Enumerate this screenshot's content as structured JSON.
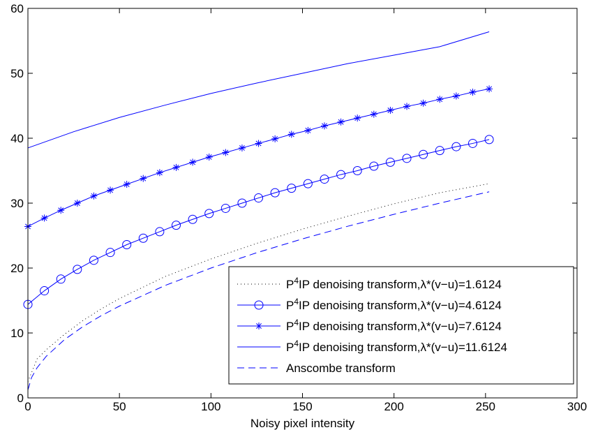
{
  "chart_data": {
    "type": "line",
    "xlabel": "Noisy pixel intensity",
    "ylabel": "",
    "title": "",
    "xlim": [
      0,
      300
    ],
    "ylim": [
      0,
      60
    ],
    "xticks": [
      0,
      50,
      100,
      150,
      200,
      250,
      300
    ],
    "yticks": [
      0,
      10,
      20,
      30,
      40,
      50,
      60
    ],
    "grid": false,
    "legend_position": "bottom-right",
    "line_color": "#0000ff",
    "series": [
      {
        "legend_prefix": "P",
        "legend_sup": "4",
        "legend_suffix": "IP denoising transform,λ*(v−u)=1.6124",
        "style": "dotted",
        "marker": "none",
        "color": "#000000",
        "x": [
          0,
          5,
          10,
          20,
          30,
          40,
          50,
          75,
          100,
          125,
          150,
          175,
          200,
          225,
          252
        ],
        "y": [
          2.5,
          6.0,
          7.4,
          9.8,
          11.9,
          13.7,
          15.3,
          18.7,
          21.4,
          23.8,
          26.0,
          28.0,
          29.9,
          31.6,
          33.0
        ]
      },
      {
        "legend_prefix": "P",
        "legend_sup": "4",
        "legend_suffix": "IP denoising transform,λ*(v−u)=4.6124",
        "style": "solid",
        "marker": "circle",
        "color": "#0000ff",
        "x": [
          0,
          9,
          18,
          27,
          36,
          45,
          54,
          63,
          72,
          81,
          90,
          99,
          108,
          117,
          126,
          135,
          144,
          153,
          162,
          171,
          180,
          189,
          198,
          207,
          216,
          225,
          234,
          243,
          252
        ],
        "y": [
          14.4,
          16.5,
          18.3,
          19.8,
          21.2,
          22.4,
          23.6,
          24.6,
          25.6,
          26.6,
          27.5,
          28.4,
          29.2,
          30.0,
          30.8,
          31.6,
          32.3,
          33.0,
          33.7,
          34.4,
          35.0,
          35.7,
          36.3,
          36.9,
          37.5,
          38.1,
          38.7,
          39.2,
          39.8
        ]
      },
      {
        "legend_prefix": "P",
        "legend_sup": "4",
        "legend_suffix": "IP denoising transform,λ*(v−u)=7.6124",
        "style": "solid",
        "marker": "asterisk",
        "color": "#0000ff",
        "x": [
          0,
          9,
          18,
          27,
          36,
          45,
          54,
          63,
          72,
          81,
          90,
          99,
          108,
          117,
          126,
          135,
          144,
          153,
          162,
          171,
          180,
          189,
          198,
          207,
          216,
          225,
          234,
          243,
          252
        ],
        "y": [
          26.4,
          27.7,
          28.9,
          30.0,
          31.1,
          32.0,
          32.9,
          33.8,
          34.7,
          35.5,
          36.3,
          37.1,
          37.8,
          38.5,
          39.2,
          39.9,
          40.6,
          41.2,
          41.9,
          42.5,
          43.1,
          43.7,
          44.3,
          44.9,
          45.4,
          46.0,
          46.5,
          47.1,
          47.6
        ]
      },
      {
        "legend_prefix": "P",
        "legend_sup": "4",
        "legend_suffix": "IP denoising transform,λ*(v−u)=11.6124",
        "style": "solid",
        "marker": "none",
        "color": "#0000ff",
        "x": [
          0,
          25,
          50,
          75,
          100,
          125,
          150,
          175,
          200,
          225,
          252
        ],
        "y": [
          38.5,
          41.0,
          43.2,
          45.1,
          46.9,
          48.5,
          50.0,
          51.5,
          52.8,
          54.1,
          56.4
        ]
      },
      {
        "legend_prefix": "",
        "legend_sup": "",
        "legend_suffix": "Anscombe transform",
        "style": "dashed",
        "marker": "none",
        "color": "#0000ff",
        "x": [
          0,
          2,
          5,
          10,
          20,
          30,
          40,
          50,
          75,
          100,
          125,
          150,
          175,
          200,
          225,
          252
        ],
        "y": [
          1.22,
          3.14,
          4.64,
          6.4,
          8.98,
          10.97,
          12.65,
          14.14,
          17.32,
          20.0,
          22.36,
          24.49,
          26.46,
          28.28,
          30.0,
          31.75
        ]
      }
    ]
  }
}
